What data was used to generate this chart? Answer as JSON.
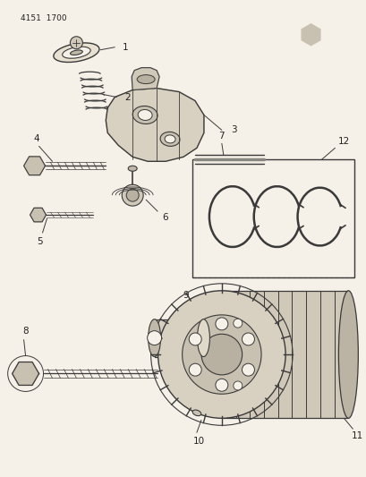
{
  "bg_color": "#f5f0e8",
  "line_color": "#3a3a3a",
  "label_color": "#222222",
  "figsize": [
    4.1,
    5.33
  ],
  "dpi": 100,
  "header": "4151  1700"
}
